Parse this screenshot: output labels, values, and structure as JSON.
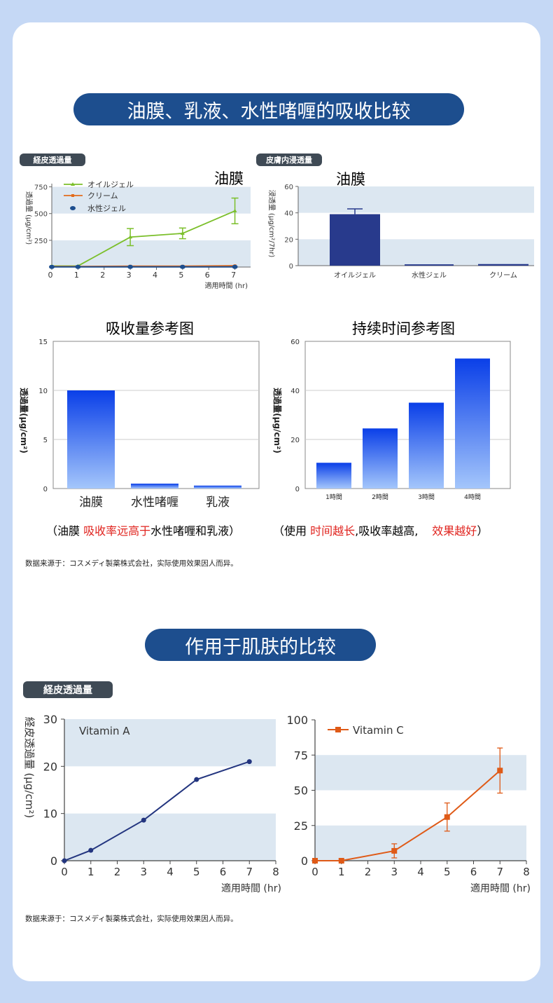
{
  "section1": {
    "title": "油膜、乳液、水性啫喱的吸收比较",
    "chartA": {
      "tag": "経皮透過量",
      "heading": "油膜",
      "ylabel": "透過量 (μg/cm²)",
      "xlabel": "適用時間 (hr)",
      "legend": [
        "オイルジェル",
        "クリーム",
        "水性ジェル"
      ],
      "xticks": [
        "0",
        "1",
        "2",
        "3",
        "4",
        "5",
        "6",
        "7"
      ],
      "yticks": [
        "750",
        "500",
        "250"
      ]
    },
    "chartB": {
      "tag": "皮膚内浸透量",
      "heading": "油膜",
      "ylabel": "浸透量 (μg/cm²/7hr)",
      "yticks": [
        "60",
        "40",
        "20",
        "0"
      ],
      "categories": [
        "オイルジェル",
        "水性ジェル",
        "クリーム"
      ]
    },
    "chartC": {
      "heading": "吸收量参考图",
      "ylabel": "透過量(μg/cm²)",
      "yticks": [
        "15",
        "10",
        "5",
        "0"
      ],
      "categories": [
        "油膜",
        "水性啫喱",
        "乳液"
      ]
    },
    "chartD": {
      "heading": "持续时间参考图",
      "ylabel": "透過量(μg/cm²)",
      "yticks": [
        "60",
        "40",
        "20",
        "0"
      ],
      "categories": [
        "1時間",
        "2時間",
        "3時間",
        "4時間"
      ]
    },
    "caption_left": {
      "pre": "（油膜 ",
      "red": "吸收率远高于",
      "post": "水性啫喱和乳液）"
    },
    "caption_right": {
      "pre": "（使用 ",
      "red1": "时间越长",
      "mid": ",吸收率越高,",
      "red2": "效果越好",
      "post": "）"
    },
    "source": "数据来源于：コスメディ製薬株式会社，实际使用效果因人而异。"
  },
  "section2": {
    "title": "作用于肌肤的比较",
    "tag": "経皮透過量",
    "ylabel": "経皮透過量 (μg/cm²)",
    "xlabel": "適用時間 (hr)",
    "left": {
      "series": "Vitamin A",
      "yticks": [
        "30",
        "20",
        "10",
        "0"
      ],
      "xticks": [
        "0",
        "1",
        "2",
        "3",
        "4",
        "5",
        "6",
        "7",
        "8"
      ]
    },
    "right": {
      "series": "Vitamin C",
      "yticks": [
        "100",
        "75",
        "50",
        "25",
        "0"
      ],
      "xticks": [
        "0",
        "1",
        "2",
        "3",
        "4",
        "5",
        "6",
        "7",
        "8"
      ]
    },
    "source": "数据来源于：コスメディ製薬株式会社，实际使用效果因人而异。"
  },
  "colors": {
    "navy": "#1d4e8e",
    "green": "#7bbf2a",
    "orange": "#e36c1c",
    "band": "#dce7f1",
    "bar_navy": "#283a8c",
    "vitA": "#23357f",
    "vitC": "#df5a17",
    "grad_top": "#0a3fe8",
    "grad_bottom": "#a4c6fb"
  },
  "chart_data": [
    {
      "type": "line",
      "title": "油膜",
      "xlabel": "適用時間 (hr)",
      "ylabel": "透過量 (μg/cm²)",
      "x": [
        0,
        1,
        3,
        5,
        7
      ],
      "xlim": [
        0,
        7.6
      ],
      "ylim": [
        0,
        780
      ],
      "series": [
        {
          "name": "オイルジェル",
          "values": [
            10,
            10,
            280,
            315,
            525
          ],
          "error": [
            0,
            0,
            80,
            50,
            120
          ]
        },
        {
          "name": "クリーム",
          "values": [
            5,
            5,
            8,
            8,
            12
          ]
        },
        {
          "name": "水性ジェル",
          "values": [
            2,
            2,
            2,
            2,
            2
          ]
        }
      ]
    },
    {
      "type": "bar",
      "title": "油膜",
      "ylabel": "浸透量 (μg/cm²/7hr)",
      "categories": [
        "オイルジェル",
        "水性ジェル",
        "クリーム"
      ],
      "values": [
        39,
        1,
        1.2
      ],
      "error": [
        4,
        0,
        0
      ],
      "ylim": [
        0,
        60
      ]
    },
    {
      "type": "bar",
      "title": "吸收量参考图",
      "ylabel": "透過量(μg/cm²)",
      "categories": [
        "油膜",
        "水性啫喱",
        "乳液"
      ],
      "values": [
        10,
        0.5,
        0.3
      ],
      "ylim": [
        0,
        15
      ]
    },
    {
      "type": "bar",
      "title": "持续时间参考图",
      "ylabel": "透過量(μg/cm²)",
      "categories": [
        "1時間",
        "2時間",
        "3時間",
        "4時間"
      ],
      "values": [
        10.5,
        24.5,
        35,
        53
      ],
      "ylim": [
        0,
        60
      ]
    },
    {
      "type": "line",
      "xlabel": "適用時間 (hr)",
      "ylabel": "経皮透過量 (μg/cm²)",
      "x": [
        0,
        1,
        3,
        5,
        7
      ],
      "xlim": [
        0,
        8
      ],
      "ylim": [
        0,
        30
      ],
      "series": [
        {
          "name": "Vitamin A",
          "values": [
            0,
            2.2,
            8.6,
            17.2,
            21
          ]
        }
      ]
    },
    {
      "type": "line",
      "xlabel": "適用時間 (hr)",
      "x": [
        0,
        1,
        3,
        5,
        7
      ],
      "xlim": [
        0,
        8
      ],
      "ylim": [
        0,
        100
      ],
      "series": [
        {
          "name": "Vitamin C",
          "values": [
            0,
            0,
            7,
            31,
            64
          ],
          "error": [
            0,
            0,
            5,
            10,
            16
          ]
        }
      ]
    }
  ]
}
